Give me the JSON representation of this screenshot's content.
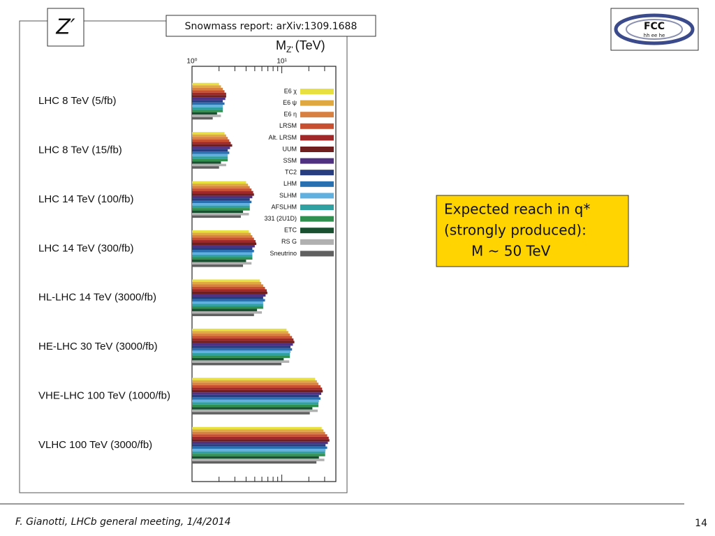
{
  "slide": {
    "title_symbol": "Z′",
    "reference": "Snowmass report: arXiv:1309.1688",
    "logo_text": "FCC",
    "logo_subtext": "hh ee he",
    "note_lines": [
      "Expected reach in q*",
      "(strongly produced):",
      "M ~  50 TeV"
    ],
    "footer": "F. Gianotti, LHCb general meeting, 1/4/2014",
    "page_number": "14"
  },
  "chart_data": {
    "type": "bar",
    "orientation": "horizontal",
    "xlabel": "M",
    "xlabel_sub": "Z'",
    "xlabel_unit": "(TeV)",
    "xscale": "log",
    "xlim": [
      1,
      40
    ],
    "xticks": [
      {
        "value": 1,
        "label": "10⁰"
      },
      {
        "value": 10,
        "label": "10¹"
      }
    ],
    "xminorticks": [
      2,
      3,
      4,
      5,
      6,
      7,
      8,
      9,
      20,
      30
    ],
    "legend": "top-right",
    "categories": [
      "LHC 8 TeV (5/fb)",
      "LHC 8 TeV (15/fb)",
      "LHC 14 TeV (100/fb)",
      "LHC 14 TeV (300/fb)",
      "HL-LHC 14 TeV (3000/fb)",
      "HE-LHC 30 TeV (3000/fb)",
      "VHE-LHC 100 TeV (1000/fb)",
      "VLHC 100 TeV (3000/fb)"
    ],
    "series": [
      {
        "name": "E6 χ",
        "color": "#e8e040",
        "values": [
          2.0,
          2.3,
          4.0,
          4.3,
          5.7,
          11.3,
          23.5,
          27.8
        ]
      },
      {
        "name": "E6 ψ",
        "color": "#e0a840",
        "values": [
          2.1,
          2.4,
          4.2,
          4.5,
          5.9,
          11.8,
          24.6,
          29.1
        ]
      },
      {
        "name": "E6 η",
        "color": "#d88040",
        "values": [
          2.2,
          2.5,
          4.4,
          4.7,
          6.2,
          12.3,
          25.6,
          30.4
        ]
      },
      {
        "name": "LRSM",
        "color": "#c85030",
        "values": [
          2.3,
          2.6,
          4.6,
          4.9,
          6.5,
          13,
          27,
          32
        ]
      },
      {
        "name": "Alt. LRSM",
        "color": "#a02828",
        "values": [
          2.4,
          2.7,
          4.8,
          5.1,
          6.8,
          13.5,
          28.1,
          33.3
        ]
      },
      {
        "name": "UUM",
        "color": "#701e1e",
        "values": [
          2.4,
          2.8,
          4.9,
          5.2,
          6.9,
          13.8,
          28.6,
          33.9
        ]
      },
      {
        "name": "SSM",
        "color": "#503080",
        "values": [
          2.35,
          2.65,
          4.7,
          5.0,
          6.6,
          13.3,
          27.5,
          32.6
        ]
      },
      {
        "name": "TC2",
        "color": "#283c80",
        "values": [
          2.2,
          2.5,
          4.4,
          4.7,
          6.2,
          12.5,
          25.9,
          30.7
        ]
      },
      {
        "name": "LHM",
        "color": "#2870b0",
        "values": [
          2.3,
          2.6,
          4.6,
          4.9,
          6.5,
          13,
          27,
          32
        ]
      },
      {
        "name": "SLHM",
        "color": "#60b0e0",
        "values": [
          2.2,
          2.5,
          4.4,
          4.7,
          6.2,
          12.5,
          25.9,
          30.7
        ]
      },
      {
        "name": "AFSLHM",
        "color": "#30a0a0",
        "values": [
          2.2,
          2.5,
          4.4,
          4.7,
          6.2,
          12.3,
          25.6,
          30.4
        ]
      },
      {
        "name": "331 (2U1D)",
        "color": "#309050",
        "values": [
          2.2,
          2.5,
          4.4,
          4.7,
          6.2,
          12.3,
          25.6,
          30.4
        ]
      },
      {
        "name": "ETC",
        "color": "#185030",
        "values": [
          1.9,
          2.1,
          3.7,
          4.0,
          5.3,
          10.5,
          21.9,
          25.9
        ]
      },
      {
        "name": "RS G",
        "color": "#b0b0b0",
        "values": [
          2.1,
          2.4,
          4.3,
          4.6,
          6.0,
          12.1,
          25.1,
          29.8
        ]
      },
      {
        "name": "Sneutrino",
        "color": "#606060",
        "values": [
          1.7,
          2.0,
          3.5,
          3.7,
          4.9,
          9.9,
          20.5,
          24.3
        ]
      }
    ]
  }
}
